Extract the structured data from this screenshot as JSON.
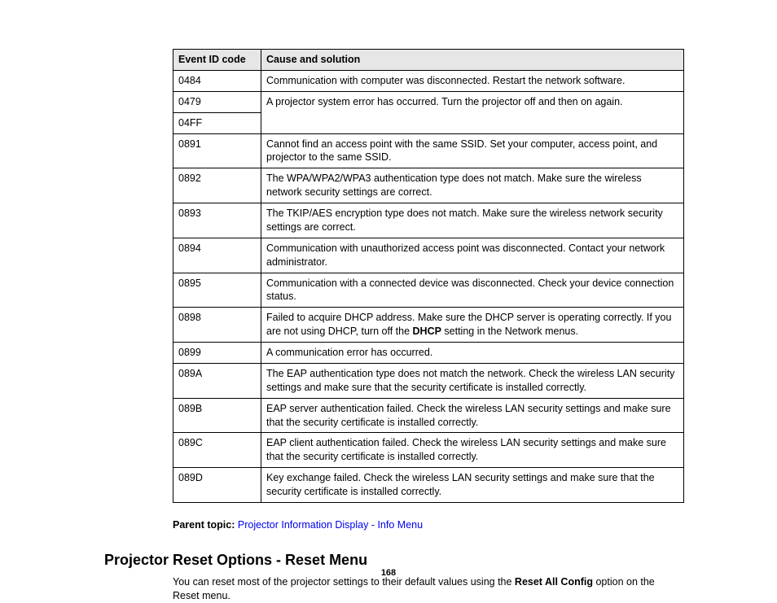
{
  "table": {
    "headers": [
      "Event ID code",
      "Cause and solution"
    ],
    "rows": [
      {
        "code": "0484",
        "text": "Communication with computer was disconnected. Restart the network software.",
        "rowspan": 1
      },
      {
        "code": "0479",
        "text": "A projector system error has occurred. Turn the projector off and then on again.",
        "rowspan": 2
      },
      {
        "code": "04FF"
      },
      {
        "code": "0891",
        "text": "Cannot find an access point with the same SSID. Set your computer, access point, and projector to the same SSID.",
        "rowspan": 1
      },
      {
        "code": "0892",
        "text": "The WPA/WPA2/WPA3 authentication type does not match. Make sure the wireless network security settings are correct.",
        "rowspan": 1
      },
      {
        "code": "0893",
        "text": "The TKIP/AES encryption type does not match. Make sure the wireless network security settings are correct.",
        "rowspan": 1
      },
      {
        "code": "0894",
        "text": "Communication with unauthorized access point was disconnected. Contact your network administrator.",
        "rowspan": 1
      },
      {
        "code": "0895",
        "text": "Communication with a connected device was disconnected. Check your device connection status.",
        "rowspan": 1
      },
      {
        "code": "0898",
        "pre": "Failed to acquire DHCP address. Make sure the DHCP server is operating correctly. If you are not using DHCP, turn off the ",
        "bold": "DHCP",
        "post": " setting in the Network menus.",
        "rowspan": 1
      },
      {
        "code": "0899",
        "text": "A communication error has occurred.",
        "rowspan": 1
      },
      {
        "code": "089A",
        "text": "The EAP authentication type does not match the network. Check the wireless LAN security settings and make sure that the security certificate is installed correctly.",
        "rowspan": 1
      },
      {
        "code": "089B",
        "text": "EAP server authentication failed. Check the wireless LAN security settings and make sure that the security certificate is installed correctly.",
        "rowspan": 1
      },
      {
        "code": "089C",
        "text": "EAP client authentication failed. Check the wireless LAN security settings and make sure that the security certificate is installed correctly.",
        "rowspan": 1
      },
      {
        "code": "089D",
        "text": "Key exchange failed. Check the wireless LAN security settings and make sure that the security certificate is installed correctly.",
        "rowspan": 1
      }
    ]
  },
  "parent_topic": {
    "label": "Parent topic: ",
    "link": "Projector Information Display - Info Menu"
  },
  "heading": "Projector Reset Options - Reset Menu",
  "body": {
    "pre": "You can reset most of the projector settings to their default values using the ",
    "bold": "Reset All Config",
    "post": " option on the Reset menu."
  },
  "page_number": "168"
}
